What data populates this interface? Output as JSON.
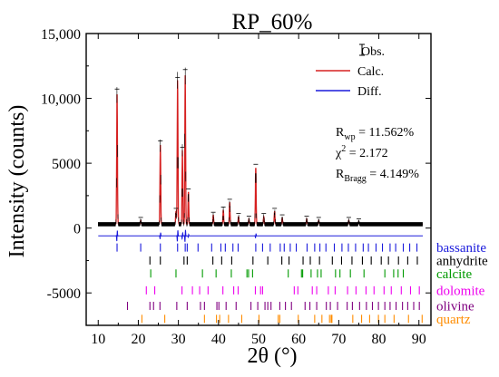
{
  "chart_data": {
    "type": "line",
    "title": "RP_60%",
    "xlabel": "2θ (°)",
    "ylabel": "Intensity (counts)",
    "xlim": [
      7,
      93
    ],
    "ylim": [
      -7500,
      15000
    ],
    "xticks": [
      10,
      20,
      30,
      40,
      50,
      60,
      70,
      80,
      90
    ],
    "yticks": [
      {
        "value": 15000,
        "label": "15,000"
      },
      {
        "value": 10000,
        "label": "10,000"
      },
      {
        "value": 5000,
        "label": "5000"
      },
      {
        "value": 0,
        "label": "0"
      },
      {
        "value": -5000,
        "label": "-5000"
      }
    ],
    "legend": {
      "placement": "top-right",
      "entries": [
        {
          "name": "Obs.",
          "color": "#000000",
          "style": "marker"
        },
        {
          "name": "Calc.",
          "color": "#d62020",
          "style": "line"
        },
        {
          "name": "Diff.",
          "color": "#1a1adc",
          "style": "line"
        }
      ]
    },
    "stats": {
      "rwp": {
        "sym": "R",
        "sub": "wp",
        "val": " = 11.562%"
      },
      "chi2": {
        "sym": "χ",
        "sup": "2",
        "val": " = 2.172"
      },
      "rbragg": {
        "sym": "R",
        "sub": "Bragg",
        "val": " = 4.149%"
      }
    },
    "background": 300,
    "peaks": [
      {
        "x": 14.7,
        "y": 10500
      },
      {
        "x": 20.6,
        "y": 600
      },
      {
        "x": 25.5,
        "y": 6500
      },
      {
        "x": 29.4,
        "y": 1300
      },
      {
        "x": 29.8,
        "y": 11400
      },
      {
        "x": 31.0,
        "y": 6000
      },
      {
        "x": 31.7,
        "y": 12000
      },
      {
        "x": 32.5,
        "y": 2800
      },
      {
        "x": 38.7,
        "y": 1000
      },
      {
        "x": 41.2,
        "y": 1400
      },
      {
        "x": 42.8,
        "y": 2000
      },
      {
        "x": 45.0,
        "y": 900
      },
      {
        "x": 47.6,
        "y": 700
      },
      {
        "x": 49.3,
        "y": 4700
      },
      {
        "x": 51.3,
        "y": 900
      },
      {
        "x": 54.0,
        "y": 1300
      },
      {
        "x": 55.9,
        "y": 800
      },
      {
        "x": 62.0,
        "y": 700
      },
      {
        "x": 65.0,
        "y": 600
      },
      {
        "x": 72.5,
        "y": 600
      },
      {
        "x": 75.0,
        "y": 500
      }
    ],
    "diff_offset": -600,
    "phases": [
      {
        "name": "bassanite",
        "color": "#1a1adc",
        "y": -1500,
        "positions": [
          14.7,
          20.6,
          25.5,
          29.8,
          31.7,
          32.2,
          34.9,
          38.3,
          40.6,
          41.7,
          43.6,
          44.9,
          49.3,
          51.0,
          52.9,
          55.4,
          56.4,
          57.9,
          59.4,
          62.1,
          64.0,
          65.3,
          66.8,
          68.9,
          70.8,
          72.4,
          74.2,
          76.1,
          77.4,
          79.3,
          80.9,
          82.8,
          84.2,
          86.1,
          87.7,
          89.5
        ]
      },
      {
        "name": "anhydrite",
        "color": "#000000",
        "y": -2500,
        "positions": [
          22.9,
          25.5,
          31.4,
          32.2,
          38.6,
          40.8,
          43.3,
          48.6,
          52.3,
          55.8,
          57.6,
          61.1,
          62.9,
          65.2,
          68.4,
          70.7,
          73.3,
          75.9,
          78.1,
          80.6,
          82.4,
          84.9,
          87.2,
          89.6
        ]
      },
      {
        "name": "calcite",
        "color": "#009a00",
        "y": -3500,
        "positions": [
          23.1,
          29.4,
          36.0,
          39.4,
          43.2,
          47.1,
          47.5,
          48.5,
          57.4,
          60.7,
          61.0,
          63.1,
          64.7,
          65.6,
          69.2,
          70.3,
          72.9,
          76.3,
          81.5,
          83.7,
          84.8,
          86.1
        ]
      },
      {
        "name": "dolomite",
        "color": "#ee00ee",
        "y": -4800,
        "positions": [
          22.0,
          24.1,
          30.9,
          33.5,
          35.3,
          37.4,
          41.1,
          43.8,
          44.9,
          49.2,
          50.5,
          51.0,
          58.9,
          59.8,
          63.4,
          64.5,
          67.4,
          69.1,
          72.2,
          74.3,
          76.8,
          78.8,
          81.3,
          83.1,
          85.6,
          87.9,
          90.1
        ]
      },
      {
        "name": "olivine",
        "color": "#800080",
        "y": -6000,
        "positions": [
          17.3,
          22.9,
          23.8,
          25.4,
          29.6,
          32.2,
          35.5,
          36.5,
          39.6,
          40.1,
          41.9,
          44.4,
          48.1,
          49.8,
          51.6,
          52.3,
          53.1,
          55.3,
          56.7,
          58.2,
          61.6,
          62.8,
          64.5,
          66.9,
          67.9,
          69.7,
          72.1,
          73.4,
          75.2,
          76.9,
          78.4,
          79.9,
          81.5,
          82.8,
          84.3,
          85.9,
          87.2,
          88.7,
          90.1
        ]
      },
      {
        "name": "quartz",
        "color": "#ff8c00",
        "y": -7000,
        "positions": [
          20.9,
          26.6,
          36.5,
          39.5,
          40.3,
          42.5,
          45.8,
          50.1,
          54.9,
          55.3,
          59.9,
          64.0,
          65.8,
          67.7,
          68.1,
          68.3,
          73.5,
          75.7,
          77.7,
          79.9,
          81.5,
          83.8,
          87.4,
          90.8
        ]
      }
    ]
  }
}
